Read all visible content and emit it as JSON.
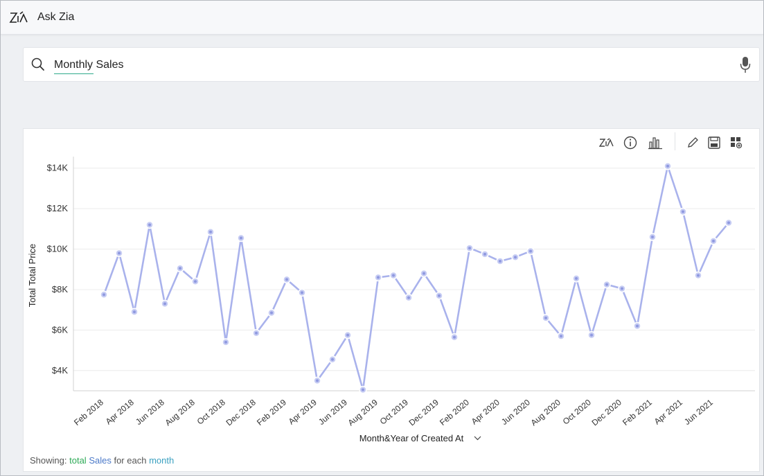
{
  "app": {
    "title": "Ask Zia"
  },
  "search": {
    "query": "Monthly Sales"
  },
  "toolbar": {
    "icons": [
      "zia-icon",
      "info-icon",
      "bar-chart-icon",
      "edit-icon",
      "save-icon",
      "add-to-dashboard-icon"
    ]
  },
  "footer": {
    "showing_label": "Showing:",
    "aggregate": "total",
    "measure": "Sales",
    "for_each": "for each",
    "dimension": "month"
  },
  "colors": {
    "line": "#a9b2ec",
    "accent": "#2eaa8a"
  },
  "chart_data": {
    "type": "line",
    "xlabel": "Month&Year of Created At",
    "ylabel": "Total Total Price",
    "ylim": [
      3000,
      14400
    ],
    "yticks": [
      4000,
      6000,
      8000,
      10000,
      12000,
      14000
    ],
    "ytick_labels": [
      "$4K",
      "$6K",
      "$8K",
      "$10K",
      "$12K",
      "$14K"
    ],
    "x_tick_labels": [
      "Feb 2018",
      "Apr 2018",
      "Jun 2018",
      "Aug 2018",
      "Oct 2018",
      "Dec 2018",
      "Feb 2019",
      "Apr 2019",
      "Jun 2019",
      "Aug 2019",
      "Oct 2019",
      "Dec 2019",
      "Feb 2020",
      "Apr 2020",
      "Jun 2020",
      "Aug 2020",
      "Oct 2020",
      "Dec 2020",
      "Feb 2021",
      "Apr 2021",
      "Jun 2021"
    ],
    "categories": [
      "Feb 2018",
      "Mar 2018",
      "Apr 2018",
      "May 2018",
      "Jun 2018",
      "Jul 2018",
      "Aug 2018",
      "Sep 2018",
      "Oct 2018",
      "Nov 2018",
      "Dec 2018",
      "Jan 2019",
      "Feb 2019",
      "Mar 2019",
      "Apr 2019",
      "May 2019",
      "Jun 2019",
      "Jul 2019",
      "Aug 2019",
      "Sep 2019",
      "Oct 2019",
      "Nov 2019",
      "Dec 2019",
      "Jan 2020",
      "Feb 2020",
      "Mar 2020",
      "Apr 2020",
      "May 2020",
      "Jun 2020",
      "Jul 2020",
      "Aug 2020",
      "Sep 2020",
      "Oct 2020",
      "Nov 2020",
      "Dec 2020",
      "Jan 2021",
      "Feb 2021",
      "Mar 2021",
      "Apr 2021",
      "May 2021",
      "Jun 2021",
      "Jul 2021"
    ],
    "values": [
      7750,
      9800,
      6900,
      11200,
      7300,
      9050,
      8400,
      10850,
      5400,
      10550,
      5850,
      6850,
      8500,
      7850,
      3500,
      4550,
      5750,
      3050,
      8600,
      8700,
      7600,
      8800,
      7700,
      5650,
      10050,
      9750,
      9400,
      9600,
      9900,
      6600,
      5700,
      8550,
      5750,
      8250,
      8050,
      6200,
      10600,
      14100,
      11850,
      8700,
      10400,
      11300
    ],
    "grid": true
  }
}
